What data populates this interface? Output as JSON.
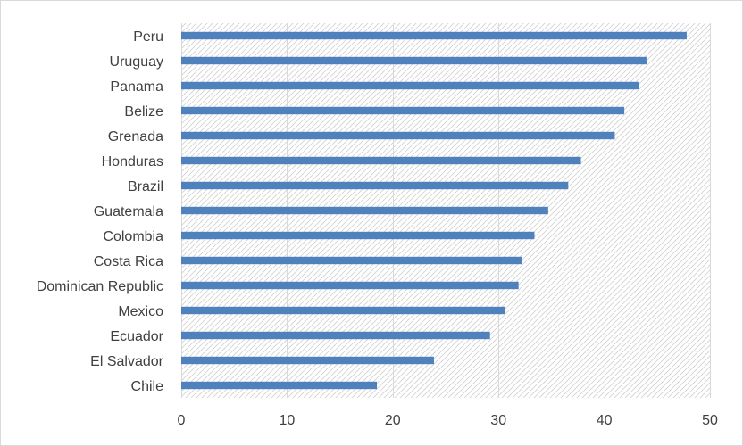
{
  "chart_data": {
    "type": "bar",
    "orientation": "horizontal",
    "categories": [
      "Peru",
      "Uruguay",
      "Panama",
      "Belize",
      "Grenada",
      "Honduras",
      "Brazil",
      "Guatemala",
      "Colombia",
      "Costa Rica",
      "Dominican Republic",
      "Mexico",
      "Ecuador",
      "El Salvador",
      "Chile"
    ],
    "values": [
      47.8,
      44.0,
      43.3,
      41.9,
      41.0,
      37.8,
      36.6,
      34.7,
      33.4,
      32.2,
      31.9,
      30.6,
      29.2,
      23.9,
      18.5
    ],
    "xlim": [
      0,
      50
    ],
    "xticks": [
      "0",
      "10",
      "20",
      "30",
      "40",
      "50"
    ],
    "title": "",
    "xlabel": "",
    "ylabel": "",
    "grid": "vertical",
    "legend": "none",
    "plot_background": "diagonal-hatch",
    "colors": {
      "bar": "#4f81bd",
      "grid": "#d9d9d9",
      "hatch": "#d0d0d0",
      "text": "#404040"
    }
  }
}
